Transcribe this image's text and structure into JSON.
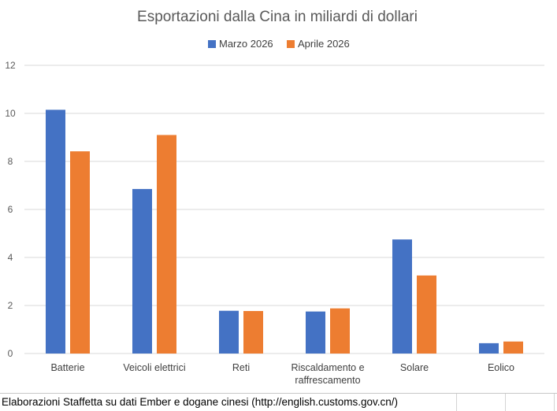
{
  "chart_data": {
    "type": "bar",
    "title": "Esportazioni dalla Cina in miliardi di dollari",
    "categories": [
      [
        "Batterie"
      ],
      [
        "Veicoli elettrici"
      ],
      [
        "Reti"
      ],
      [
        "Riscaldamento e",
        "raffrescamento"
      ],
      [
        "Solare"
      ],
      [
        "Eolico"
      ]
    ],
    "series": [
      {
        "name": "Marzo 2026",
        "color": "#4472c4",
        "values": [
          10.15,
          6.85,
          1.78,
          1.75,
          4.75,
          0.43
        ]
      },
      {
        "name": "Aprile 2026",
        "color": "#ed7d31",
        "values": [
          8.42,
          9.1,
          1.77,
          1.88,
          3.25,
          0.5
        ]
      }
    ],
    "ylim": [
      0,
      12
    ],
    "yticks": [
      0,
      2,
      4,
      6,
      8,
      10,
      12
    ],
    "grid": true,
    "legend_position": "top"
  },
  "source": "Elaborazioni Staffetta su dati Ember e dogane cinesi (http://english.customs.gov.cn/)"
}
